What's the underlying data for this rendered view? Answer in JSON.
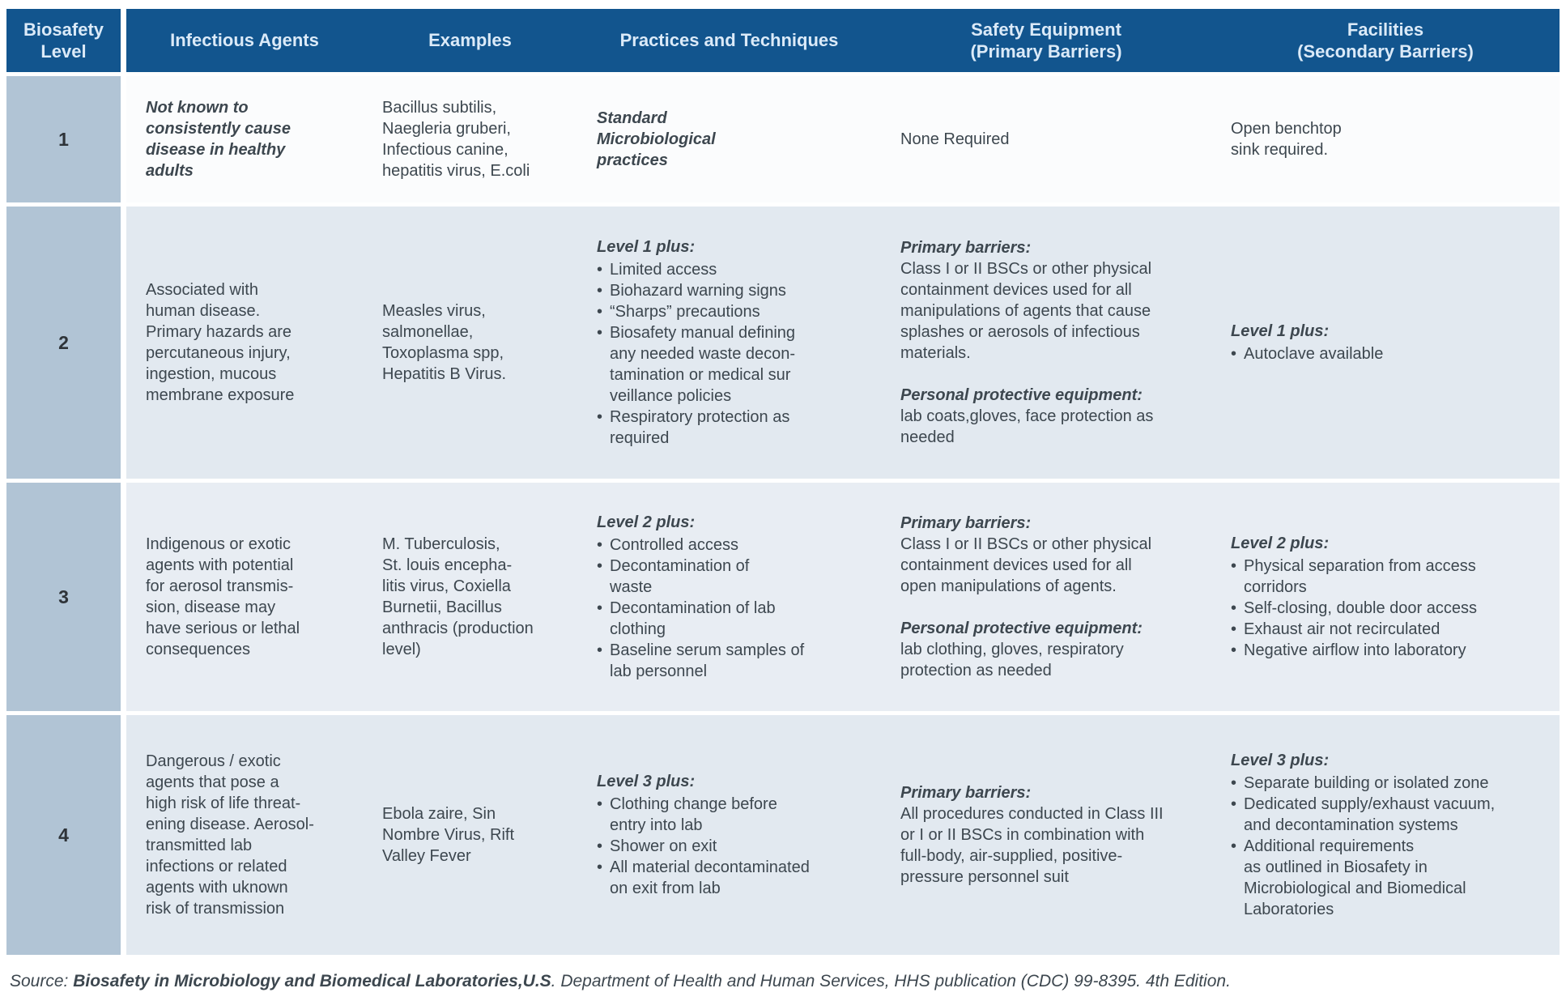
{
  "colors": {
    "page_bg": "#ffffff",
    "header_bg": "#12558e",
    "header_text": "#dbeaf8",
    "level_bg": "#b1c4d5",
    "body_text": "#3d474f",
    "row_bgs": [
      "#fbfcfd",
      "#e2e9f0",
      "#e8edf3",
      "#e2e9f0"
    ]
  },
  "header": {
    "columns": [
      "Biosafety\nLevel",
      "Infectious Agents",
      "Examples",
      "Practices and Techniques",
      "Safety Equipment\n(Primary Barriers)",
      "Facilities\n(Secondary Barriers)"
    ]
  },
  "rows": [
    {
      "level": "1",
      "agents": {
        "text": "Not known to\nconsistently cause\ndisease in healthy\nadults",
        "emphasis": true
      },
      "examples": "Bacillus subtilis,\nNaegleria gruberi,\nInfectious canine,\nhepatitis virus, E.coli",
      "practices": {
        "lead": "Standard\nMicrobiological\npractices",
        "bullets": []
      },
      "safety": [
        {
          "heading": "",
          "text": "None Required"
        }
      ],
      "facilities": {
        "lead": "",
        "text": "Open benchtop\nsink required.",
        "bullets": []
      }
    },
    {
      "level": "2",
      "agents": {
        "text": "Associated with\nhuman disease.\nPrimary hazards are\npercutaneous injury,\ningestion, mucous\nmembrane exposure",
        "emphasis": false
      },
      "examples": "Measles virus,\nsalmonellae,\nToxoplasma spp,\nHepatitis B Virus.",
      "practices": {
        "lead": "Level 1 plus:",
        "bullets": [
          "Limited access",
          "Biohazard warning signs",
          "“Sharps” precautions",
          "Biosafety manual defining\nany needed waste decon-\ntamination or medical sur\nveillance policies",
          "Respiratory protection as\nrequired"
        ]
      },
      "safety": [
        {
          "heading": "Primary barriers:",
          "text": "Class I or II BSCs or other physical\ncontainment devices used for all\nmanipulations of agents that cause\nsplashes or aerosols of infectious\nmaterials."
        },
        {
          "heading": "Personal protective equipment:",
          "text": "lab coats,gloves, face protection as\nneeded"
        }
      ],
      "facilities": {
        "lead": "Level 1 plus:",
        "text": "",
        "bullets": [
          "Autoclave available"
        ]
      }
    },
    {
      "level": "3",
      "agents": {
        "text": "Indigenous or exotic\nagents with potential\nfor aerosol transmis-\nsion, disease may\nhave serious or lethal\nconsequences",
        "emphasis": false
      },
      "examples": "M. Tuberculosis,\nSt. louis encepha-\nlitis virus, Coxiella\nBurnetii, Bacillus\nanthracis (production\nlevel)",
      "practices": {
        "lead": "Level 2 plus:",
        "bullets": [
          "Controlled access",
          "Decontamination of\nwaste",
          "Decontamination of lab\nclothing",
          "Baseline serum samples of\nlab personnel"
        ]
      },
      "safety": [
        {
          "heading": "Primary barriers:",
          "text": "Class I or II BSCs or other physical\ncontainment devices used for all\nopen manipulations of agents."
        },
        {
          "heading": "Personal protective equipment:",
          "text": "lab clothing, gloves, respiratory\nprotection as needed"
        }
      ],
      "facilities": {
        "lead": "Level 2 plus:",
        "text": "",
        "bullets": [
          "Physical separation from access\ncorridors",
          "Self-closing, double door access",
          "Exhaust air not recirculated",
          "Negative airflow into laboratory"
        ]
      }
    },
    {
      "level": "4",
      "agents": {
        "text": "Dangerous / exotic\nagents that pose a\nhigh risk of life threat-\nening disease. Aerosol-\ntransmitted lab\ninfections or related\nagents with uknown\nrisk of transmission",
        "emphasis": false
      },
      "examples": "Ebola zaire, Sin\nNombre Virus, Rift\nValley Fever",
      "practices": {
        "lead": "Level 3 plus:",
        "bullets": [
          "Clothing change before\nentry into lab",
          "Shower on exit",
          "All material decontaminated\non exit from lab"
        ]
      },
      "safety": [
        {
          "heading": "Primary barriers:",
          "text": "All procedures conducted in Class III\nor I or II BSCs in combination with\nfull-body, air-supplied, positive-\npressure personnel suit"
        }
      ],
      "facilities": {
        "lead": "Level 3 plus:",
        "text": "",
        "bullets": [
          "Separate building or isolated zone",
          "Dedicated supply/exhaust vacuum,\nand decontamination systems",
          "Additional requirements\nas outlined in Biosafety in\nMicrobiological and Biomedical\nLaboratories"
        ]
      }
    }
  ],
  "source": {
    "prefix": "Source: ",
    "title": "Biosafety in Microbiology and Biomedical Laboratories,U.S",
    "rest": ". Department of Health and Human Services, HHS publication (CDC) 99-8395. 4th Edition."
  }
}
